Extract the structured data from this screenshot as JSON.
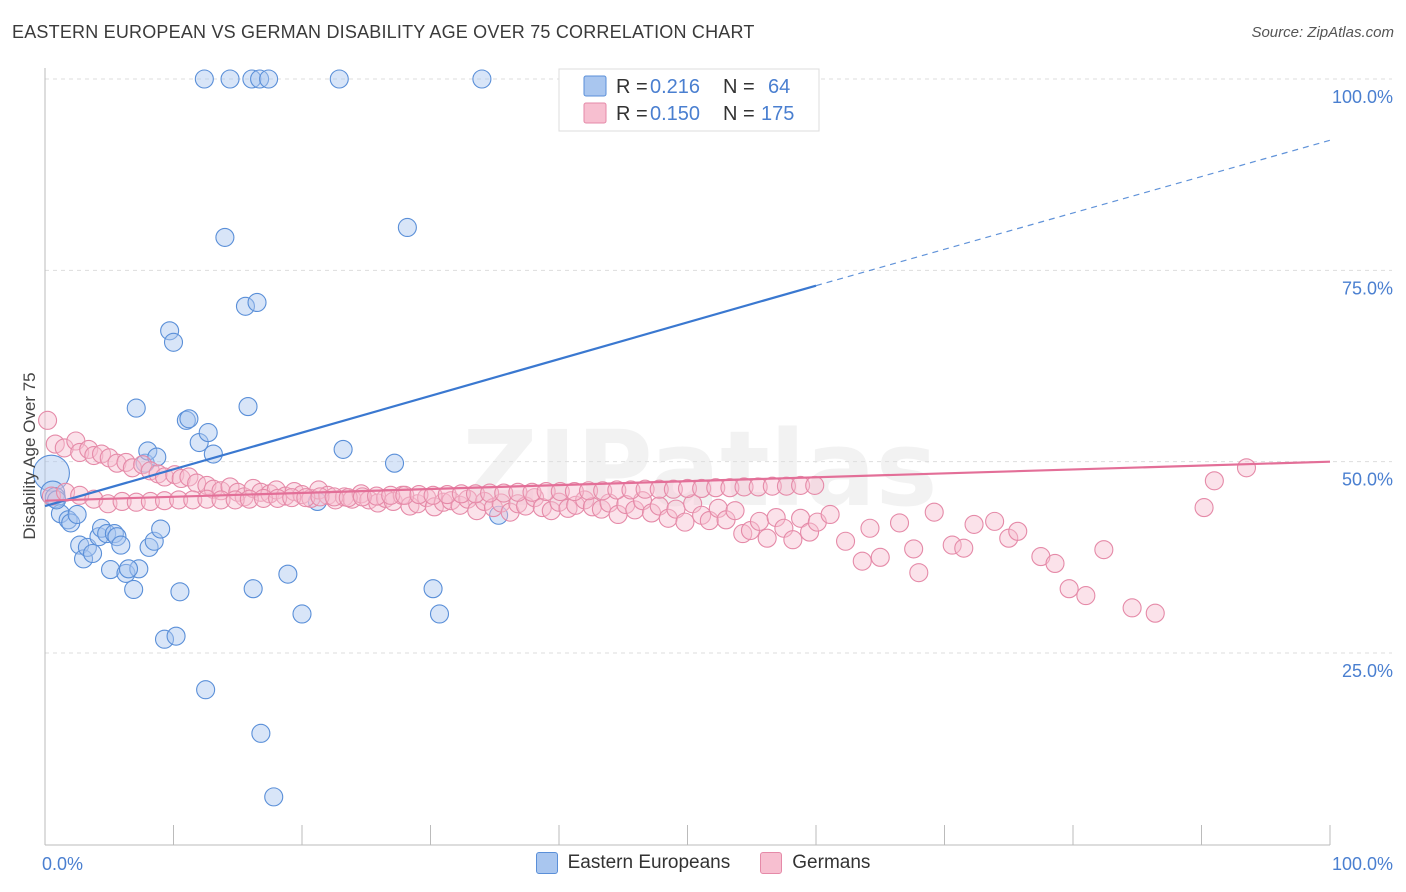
{
  "title": "EASTERN EUROPEAN VS GERMAN DISABILITY AGE OVER 75 CORRELATION CHART",
  "source": "Source: ZipAtlas.com",
  "watermark": "ZIPatlas",
  "colors": {
    "blue_fill": "#a9c6ef",
    "blue_stroke": "#5a8fd8",
    "blue_line": "#3a78d0",
    "pink_fill": "#f7bfd0",
    "pink_stroke": "#e58aa8",
    "pink_line": "#e36f98",
    "tick_text": "#4a7fd0",
    "grid": "#dddddd"
  },
  "legend": {
    "rows": [
      {
        "r_label": "R =",
        "r_value": "0.216",
        "n_label": "N =",
        "n_value": "64"
      },
      {
        "r_label": "R =",
        "r_value": "0.150",
        "n_label": "N =",
        "n_value": "175"
      }
    ]
  },
  "bottom_legend": [
    "Eastern Europeans",
    "Germans"
  ],
  "chart_data": {
    "type": "scatter",
    "title": "EASTERN EUROPEAN VS GERMAN DISABILITY AGE OVER 75 CORRELATION CHART",
    "xlabel": "",
    "ylabel": "Disability Age Over 75",
    "xlim": [
      0,
      100
    ],
    "ylim": [
      0,
      105
    ],
    "x_tick_labels": [
      "0.0%",
      "100.0%"
    ],
    "y_ticks": [
      25,
      50,
      75,
      100
    ],
    "y_tick_labels": [
      "25.0%",
      "50.0%",
      "75.0%",
      "100.0%"
    ],
    "grid": true,
    "series": [
      {
        "name": "Eastern Europeans",
        "R": 0.216,
        "N": 64,
        "trend": {
          "x0": 0,
          "y0": 44.2,
          "x1": 60,
          "y1": 73.0,
          "dash_to_x": 100,
          "dash_to_y": 92.0
        },
        "points": [
          [
            0.5,
            48.5,
            18
          ],
          [
            0.6,
            45.9,
            12
          ],
          [
            0.8,
            45.3,
            10
          ],
          [
            1.2,
            43.2,
            9
          ],
          [
            1.8,
            42.4,
            9
          ],
          [
            2.0,
            42.0,
            9
          ],
          [
            2.5,
            43.1,
            9
          ],
          [
            2.7,
            39.1,
            9
          ],
          [
            3.0,
            37.3,
            9
          ],
          [
            3.3,
            38.8,
            9
          ],
          [
            3.7,
            38.0,
            9
          ],
          [
            4.2,
            40.2,
            9
          ],
          [
            4.4,
            41.3,
            9
          ],
          [
            4.8,
            40.6,
            9
          ],
          [
            5.1,
            35.9,
            9
          ],
          [
            5.4,
            40.6,
            9
          ],
          [
            5.6,
            40.2,
            9
          ],
          [
            5.9,
            39.1,
            9
          ],
          [
            6.3,
            35.4,
            9
          ],
          [
            6.9,
            33.3,
            9
          ],
          [
            7.3,
            36.0,
            9
          ],
          [
            8.1,
            38.8,
            9
          ],
          [
            8.5,
            39.6,
            9
          ],
          [
            9.0,
            41.2,
            9
          ],
          [
            9.3,
            26.8,
            9
          ],
          [
            10.2,
            27.2,
            9
          ],
          [
            10.5,
            33.0,
            9
          ],
          [
            11.0,
            55.4,
            9
          ],
          [
            11.2,
            55.6,
            9
          ],
          [
            12.0,
            52.5,
            9
          ],
          [
            12.5,
            20.2,
            9
          ],
          [
            12.7,
            53.8,
            9
          ],
          [
            13.1,
            51.0,
            9
          ],
          [
            7.1,
            57.0,
            9
          ],
          [
            7.8,
            49.8,
            9
          ],
          [
            8.0,
            51.4,
            9
          ],
          [
            8.7,
            50.6,
            9
          ],
          [
            9.7,
            67.1,
            9
          ],
          [
            10.0,
            65.6,
            9
          ],
          [
            14.0,
            79.3,
            9
          ],
          [
            15.6,
            70.3,
            9
          ],
          [
            16.5,
            70.8,
            9
          ],
          [
            15.8,
            57.2,
            9
          ],
          [
            16.8,
            14.5,
            9
          ],
          [
            17.8,
            6.2,
            9
          ],
          [
            16.2,
            33.4,
            9
          ],
          [
            18.9,
            35.3,
            9
          ],
          [
            20.0,
            30.1,
            9
          ],
          [
            21.2,
            44.8,
            9
          ],
          [
            23.2,
            51.6,
            9
          ],
          [
            27.2,
            49.8,
            9
          ],
          [
            28.2,
            80.6,
            9
          ],
          [
            30.2,
            33.4,
            9
          ],
          [
            30.7,
            30.1,
            9
          ],
          [
            35.3,
            43.0,
            9
          ],
          [
            12.4,
            100.0,
            9
          ],
          [
            14.4,
            100.0,
            9
          ],
          [
            16.1,
            100.0,
            9
          ],
          [
            16.7,
            100.0,
            9
          ],
          [
            17.4,
            100.0,
            9
          ],
          [
            22.9,
            100.0,
            9
          ],
          [
            34.0,
            100.0,
            9
          ],
          [
            6.5,
            36.0,
            9
          ],
          [
            0.9,
            45.0,
            9
          ]
        ]
      },
      {
        "name": "Germans",
        "R": 0.15,
        "N": 175,
        "trend": {
          "x0": 0,
          "y0": 44.9,
          "x1": 100,
          "y1": 50.0
        },
        "points": [
          [
            0.2,
            55.4,
            9
          ],
          [
            0.8,
            52.3,
            9
          ],
          [
            1.5,
            51.8,
            9
          ],
          [
            2.4,
            52.7,
            9
          ],
          [
            2.7,
            51.2,
            9
          ],
          [
            3.4,
            51.6,
            9
          ],
          [
            3.8,
            50.8,
            9
          ],
          [
            4.4,
            51.0,
            9
          ],
          [
            5.0,
            50.5,
            9
          ],
          [
            5.6,
            49.8,
            9
          ],
          [
            6.3,
            49.9,
            9
          ],
          [
            6.8,
            49.2,
            9
          ],
          [
            7.6,
            49.6,
            9
          ],
          [
            8.2,
            48.8,
            9
          ],
          [
            8.8,
            48.4,
            9
          ],
          [
            9.3,
            48.0,
            9
          ],
          [
            10.1,
            48.3,
            9
          ],
          [
            10.6,
            47.8,
            9
          ],
          [
            11.2,
            48.0,
            9
          ],
          [
            11.8,
            47.2,
            9
          ],
          [
            12.6,
            46.9,
            9
          ],
          [
            13.1,
            46.4,
            9
          ],
          [
            13.7,
            46.2,
            9
          ],
          [
            14.4,
            46.7,
            9
          ],
          [
            15.0,
            46.0,
            9
          ],
          [
            15.5,
            45.4,
            9
          ],
          [
            16.2,
            46.5,
            9
          ],
          [
            16.8,
            46.0,
            9
          ],
          [
            17.5,
            45.8,
            9
          ],
          [
            18.0,
            46.3,
            9
          ],
          [
            18.7,
            45.5,
            9
          ],
          [
            19.4,
            46.1,
            9
          ],
          [
            20.0,
            45.7,
            9
          ],
          [
            20.7,
            45.2,
            9
          ],
          [
            21.3,
            46.3,
            9
          ],
          [
            22.0,
            45.6,
            9
          ],
          [
            22.6,
            45.0,
            9
          ],
          [
            23.3,
            45.4,
            9
          ],
          [
            23.9,
            45.1,
            9
          ],
          [
            24.6,
            45.8,
            9
          ],
          [
            25.2,
            45.0,
            9
          ],
          [
            25.9,
            44.6,
            9
          ],
          [
            26.5,
            45.2,
            9
          ],
          [
            27.1,
            44.8,
            9
          ],
          [
            27.8,
            45.6,
            9
          ],
          [
            28.4,
            44.2,
            9
          ],
          [
            29.0,
            44.5,
            9
          ],
          [
            29.7,
            45.3,
            9
          ],
          [
            30.3,
            44.1,
            9
          ],
          [
            31.0,
            44.7,
            9
          ],
          [
            31.6,
            44.9,
            9
          ],
          [
            32.3,
            44.3,
            9
          ],
          [
            32.9,
            45.1,
            9
          ],
          [
            33.6,
            43.6,
            9
          ],
          [
            34.2,
            44.8,
            9
          ],
          [
            34.9,
            44.0,
            9
          ],
          [
            35.5,
            44.6,
            9
          ],
          [
            36.2,
            43.4,
            9
          ],
          [
            36.8,
            44.5,
            9
          ],
          [
            37.4,
            44.2,
            9
          ],
          [
            38.1,
            45.3,
            9
          ],
          [
            38.7,
            44.0,
            9
          ],
          [
            39.4,
            43.6,
            9
          ],
          [
            40.0,
            44.7,
            9
          ],
          [
            40.7,
            43.9,
            9
          ],
          [
            41.3,
            44.3,
            9
          ],
          [
            42.0,
            45.0,
            9
          ],
          [
            42.6,
            44.1,
            9
          ],
          [
            43.3,
            43.8,
            9
          ],
          [
            43.9,
            44.6,
            9
          ],
          [
            44.6,
            43.1,
            9
          ],
          [
            45.2,
            44.4,
            9
          ],
          [
            45.9,
            43.7,
            9
          ],
          [
            46.5,
            44.9,
            9
          ],
          [
            47.2,
            43.3,
            9
          ],
          [
            47.8,
            44.2,
            9
          ],
          [
            48.5,
            42.6,
            9
          ],
          [
            49.1,
            43.8,
            9
          ],
          [
            49.8,
            42.1,
            9
          ],
          [
            50.4,
            44.5,
            9
          ],
          [
            51.1,
            43.0,
            9
          ],
          [
            51.7,
            42.3,
            9
          ],
          [
            52.4,
            43.9,
            9
          ],
          [
            53.0,
            42.4,
            9
          ],
          [
            53.7,
            43.6,
            9
          ],
          [
            54.3,
            40.6,
            9
          ],
          [
            54.9,
            41.0,
            9
          ],
          [
            55.6,
            42.2,
            9
          ],
          [
            56.2,
            40.0,
            9
          ],
          [
            56.9,
            42.7,
            9
          ],
          [
            57.5,
            41.3,
            9
          ],
          [
            58.2,
            39.8,
            9
          ],
          [
            58.8,
            42.6,
            9
          ],
          [
            59.5,
            40.8,
            9
          ],
          [
            60.1,
            42.1,
            9
          ],
          [
            61.1,
            43.1,
            9
          ],
          [
            62.3,
            39.6,
            9
          ],
          [
            63.6,
            37.0,
            9
          ],
          [
            64.2,
            41.3,
            9
          ],
          [
            65.0,
            37.5,
            9
          ],
          [
            66.5,
            42.0,
            9
          ],
          [
            67.6,
            38.6,
            9
          ],
          [
            68.0,
            35.5,
            9
          ],
          [
            69.2,
            43.4,
            9
          ],
          [
            70.6,
            39.1,
            9
          ],
          [
            71.5,
            38.7,
            9
          ],
          [
            72.3,
            41.8,
            9
          ],
          [
            73.9,
            42.2,
            9
          ],
          [
            75.0,
            40.0,
            9
          ],
          [
            75.7,
            40.9,
            9
          ],
          [
            77.5,
            37.6,
            9
          ],
          [
            78.6,
            36.7,
            9
          ],
          [
            79.7,
            33.4,
            9
          ],
          [
            81.0,
            32.5,
            9
          ],
          [
            82.4,
            38.5,
            9
          ],
          [
            84.6,
            30.9,
            9
          ],
          [
            86.4,
            30.2,
            9
          ],
          [
            90.2,
            44.0,
            9
          ],
          [
            91.0,
            47.5,
            9
          ],
          [
            93.5,
            49.2,
            9
          ],
          [
            0.5,
            45.5,
            9
          ],
          [
            1.6,
            46.0,
            9
          ],
          [
            2.7,
            45.6,
            9
          ],
          [
            3.8,
            45.1,
            9
          ],
          [
            4.9,
            44.5,
            9
          ],
          [
            6.0,
            44.8,
            9
          ],
          [
            7.1,
            44.7,
            9
          ],
          [
            8.2,
            44.8,
            9
          ],
          [
            9.3,
            44.9,
            9
          ],
          [
            10.4,
            45.0,
            9
          ],
          [
            11.5,
            45.0,
            9
          ],
          [
            12.6,
            45.1,
            9
          ],
          [
            13.7,
            45.0,
            9
          ],
          [
            14.8,
            45.0,
            9
          ],
          [
            15.9,
            45.1,
            9
          ],
          [
            17.0,
            45.2,
            9
          ],
          [
            18.1,
            45.2,
            9
          ],
          [
            19.2,
            45.3,
            9
          ],
          [
            20.3,
            45.3,
            9
          ],
          [
            21.4,
            45.4,
            9
          ],
          [
            22.5,
            45.4,
            9
          ],
          [
            23.6,
            45.3,
            9
          ],
          [
            24.7,
            45.4,
            9
          ],
          [
            25.8,
            45.5,
            9
          ],
          [
            26.9,
            45.6,
            9
          ],
          [
            28.0,
            45.6,
            9
          ],
          [
            29.1,
            45.7,
            9
          ],
          [
            30.2,
            45.6,
            9
          ],
          [
            31.3,
            45.7,
            9
          ],
          [
            32.4,
            45.8,
            9
          ],
          [
            33.5,
            45.8,
            9
          ],
          [
            34.6,
            45.9,
            9
          ],
          [
            35.7,
            45.9,
            9
          ],
          [
            36.8,
            46.0,
            9
          ],
          [
            37.9,
            46.0,
            9
          ],
          [
            39.0,
            46.1,
            9
          ],
          [
            40.1,
            46.1,
            9
          ],
          [
            41.2,
            46.1,
            9
          ],
          [
            42.3,
            46.2,
            9
          ],
          [
            43.4,
            46.2,
            9
          ],
          [
            44.5,
            46.3,
            9
          ],
          [
            45.6,
            46.3,
            9
          ],
          [
            46.7,
            46.4,
            9
          ],
          [
            47.8,
            46.4,
            9
          ],
          [
            48.9,
            46.4,
            9
          ],
          [
            50.0,
            46.5,
            9
          ],
          [
            51.1,
            46.5,
            9
          ],
          [
            52.2,
            46.6,
            9
          ],
          [
            53.3,
            46.6,
            9
          ],
          [
            54.4,
            46.7,
            9
          ],
          [
            55.5,
            46.7,
            9
          ],
          [
            56.6,
            46.8,
            9
          ],
          [
            57.7,
            46.8,
            9
          ],
          [
            58.8,
            46.9,
            9
          ],
          [
            59.9,
            46.9,
            9
          ]
        ]
      }
    ]
  }
}
